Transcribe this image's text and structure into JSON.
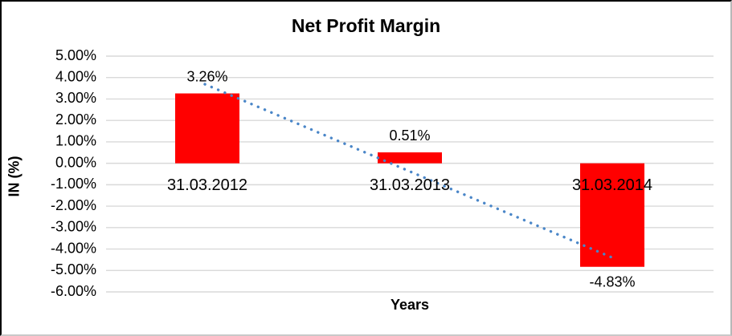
{
  "chart_data": {
    "type": "bar",
    "title": "Net Profit Margin",
    "xlabel": "Years",
    "ylabel": "IN (%)",
    "categories": [
      "31.03.2012",
      "31.03.2013",
      "31.03.2014"
    ],
    "values": [
      3.26,
      0.51,
      -4.83
    ],
    "data_labels": [
      "3.26%",
      "0.51%",
      "-4.83%"
    ],
    "ylim": [
      -6,
      5
    ],
    "ytick_step": 1,
    "ytick_labels": [
      "5.00%",
      "4.00%",
      "3.00%",
      "2.00%",
      "1.00%",
      "0.00%",
      "-1.00%",
      "-2.00%",
      "-3.00%",
      "-4.00%",
      "-5.00%",
      "-6.00%"
    ],
    "grid": true,
    "legend": "none",
    "trendline": {
      "style": "dotted",
      "start_value": 3.69,
      "end_value": -4.4
    }
  },
  "colors": {
    "bar": "#FF0000",
    "trendline": "#4A86C8",
    "gridline": "#D9D9D9",
    "text": "#000000",
    "background": "#FFFFFF"
  }
}
